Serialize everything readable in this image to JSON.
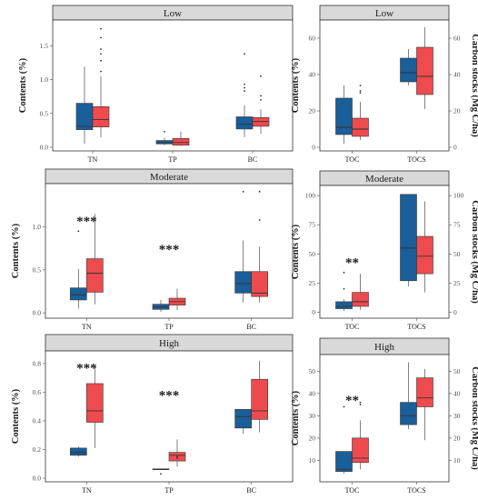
{
  "colors": {
    "A": "#1a5e9a",
    "B": "#ee4b4f",
    "strip": "#d9d9d9"
  },
  "chart_data": [
    {
      "type": "box",
      "strip": "Low",
      "ylabel": "Contents (%)",
      "categories": [
        "TN",
        "TP",
        "BC"
      ],
      "ylim": [
        0,
        1.8
      ],
      "yticks": [
        "0.0",
        "0.5",
        "1.0",
        "1.5"
      ],
      "ytick_values": [
        0,
        0.5,
        1.0,
        1.5
      ],
      "series": [
        {
          "color_key": "A",
          "boxes": [
            {
              "min": 0.05,
              "q1": 0.26,
              "median": 0.31,
              "q3": 0.65,
              "max": 1.19,
              "outliers": []
            },
            {
              "min": 0.03,
              "q1": 0.05,
              "median": 0.07,
              "q3": 0.1,
              "max": 0.14,
              "outliers": [
                0.23
              ]
            },
            {
              "min": 0.15,
              "q1": 0.27,
              "median": 0.34,
              "q3": 0.45,
              "max": 0.62,
              "outliers": [
                0.83,
                0.88,
                0.93,
                1.38
              ]
            }
          ]
        },
        {
          "color_key": "B",
          "boxes": [
            {
              "min": 0.15,
              "q1": 0.3,
              "median": 0.41,
              "q3": 0.6,
              "max": 1.05,
              "outliers": [
                1.12,
                1.28,
                1.38,
                1.45,
                1.62,
                1.75
              ]
            },
            {
              "min": 0.02,
              "q1": 0.03,
              "median": 0.07,
              "q3": 0.13,
              "max": 0.23,
              "outliers": []
            },
            {
              "min": 0.2,
              "q1": 0.31,
              "median": 0.38,
              "q3": 0.44,
              "max": 0.56,
              "outliers": [
                0.7,
                0.76,
                1.05
              ]
            }
          ]
        }
      ],
      "annotations": []
    },
    {
      "type": "box",
      "strip": "Low",
      "ylabel": "Contents (%)",
      "ylabel_right": "Carbon stocks (Mg C/ha)",
      "categories": [
        "TOC",
        "TOCS"
      ],
      "ylim": [
        0,
        67
      ],
      "yticks": [
        "0",
        "20",
        "40",
        "60"
      ],
      "ytick_values": [
        0,
        20,
        40,
        60
      ],
      "ylim_right": [
        0,
        67
      ],
      "yticks_right": [
        "0",
        "20",
        "40",
        "60"
      ],
      "ytick_values_right": [
        0,
        20,
        40,
        60
      ],
      "series": [
        {
          "color_key": "A",
          "boxes": [
            {
              "min": 2,
              "q1": 7,
              "median": 11,
              "q3": 27,
              "max": 34,
              "outliers": []
            },
            {
              "min": 34,
              "q1": 36,
              "median": 41,
              "q3": 49,
              "max": 54,
              "outliers": []
            }
          ]
        },
        {
          "color_key": "B",
          "boxes": [
            {
              "min": 4,
              "q1": 6,
              "median": 10,
              "q3": 16,
              "max": 25,
              "outliers": [
                30,
                31,
                34
              ]
            },
            {
              "min": 21,
              "q1": 29,
              "median": 39,
              "q3": 55,
              "max": 66,
              "outliers": []
            }
          ]
        }
      ],
      "annotations": []
    },
    {
      "type": "box",
      "strip": "Moderate",
      "ylabel": "Contents (%)",
      "categories": [
        "TN",
        "TP",
        "BC"
      ],
      "ylim": [
        -0.02,
        1.44
      ],
      "yticks": [
        "0.0",
        "0.5",
        "1.0"
      ],
      "ytick_values": [
        0,
        0.5,
        1.0
      ],
      "series": [
        {
          "color_key": "A",
          "boxes": [
            {
              "min": 0.05,
              "q1": 0.15,
              "median": 0.21,
              "q3": 0.29,
              "max": 0.51,
              "outliers": [
                0.95
              ]
            },
            {
              "min": 0.01,
              "q1": 0.04,
              "median": 0.07,
              "q3": 0.1,
              "max": 0.15,
              "outliers": []
            },
            {
              "min": 0.12,
              "q1": 0.23,
              "median": 0.34,
              "q3": 0.48,
              "max": 0.84,
              "outliers": [
                1.41
              ]
            }
          ]
        },
        {
          "color_key": "B",
          "boxes": [
            {
              "min": 0.1,
              "q1": 0.24,
              "median": 0.46,
              "q3": 0.63,
              "max": 1.15,
              "outliers": []
            },
            {
              "min": 0.03,
              "q1": 0.09,
              "median": 0.13,
              "q3": 0.17,
              "max": 0.28,
              "outliers": []
            },
            {
              "min": 0.12,
              "q1": 0.19,
              "median": 0.23,
              "q3": 0.48,
              "max": 0.77,
              "outliers": [
                1.08,
                1.41
              ]
            }
          ]
        }
      ],
      "annotations": [
        {
          "text": "***",
          "category_index": 0,
          "y": 1.07
        },
        {
          "text": "***",
          "category_index": 1,
          "y": 0.74
        }
      ]
    },
    {
      "type": "box",
      "strip": "Moderate",
      "ylabel": "Contents (%)",
      "ylabel_right": "Carbon stocks (Mg C/ha)",
      "categories": [
        "TOC",
        "TOCS"
      ],
      "ylim": [
        -2,
        104
      ],
      "yticks": [
        "0",
        "25",
        "50",
        "75",
        "100"
      ],
      "ytick_values": [
        0,
        25,
        50,
        75,
        100
      ],
      "ylim_right": [
        -2,
        104
      ],
      "yticks_right": [
        "0",
        "25",
        "50",
        "75",
        "100"
      ],
      "ytick_values_right": [
        0,
        25,
        50,
        75,
        100
      ],
      "series": [
        {
          "color_key": "A",
          "boxes": [
            {
              "min": 1,
              "q1": 3,
              "median": 5,
              "q3": 9,
              "max": 11,
              "outliers": [
                20,
                34
              ]
            },
            {
              "min": 22,
              "q1": 27,
              "median": 55,
              "q3": 101,
              "max": 101,
              "outliers": []
            }
          ]
        },
        {
          "color_key": "B",
          "boxes": [
            {
              "min": 2,
              "q1": 5,
              "median": 9,
              "q3": 17,
              "max": 33,
              "outliers": []
            },
            {
              "min": 17,
              "q1": 33,
              "median": 48,
              "q3": 65,
              "max": 95,
              "outliers": []
            }
          ]
        }
      ],
      "annotations": [
        {
          "text": "**",
          "category_index": 0,
          "y": 43
        }
      ]
    },
    {
      "type": "box",
      "strip": "High",
      "ylabel": "Contents (%)",
      "categories": [
        "TN",
        "TP",
        "BC"
      ],
      "ylim": [
        0,
        0.85
      ],
      "yticks": [
        "0.0",
        "0.2",
        "0.4",
        "0.6",
        "0.8"
      ],
      "ytick_values": [
        0,
        0.2,
        0.4,
        0.6,
        0.8
      ],
      "series": [
        {
          "color_key": "A",
          "boxes": [
            {
              "min": 0.15,
              "q1": 0.16,
              "median": 0.18,
              "q3": 0.21,
              "max": 0.22,
              "outliers": []
            },
            {
              "min": 0.06,
              "q1": 0.06,
              "median": 0.06,
              "q3": 0.065,
              "max": 0.065,
              "outliers": [
                0.03
              ]
            },
            {
              "min": 0.31,
              "q1": 0.35,
              "median": 0.43,
              "q3": 0.48,
              "max": 0.48,
              "outliers": []
            }
          ]
        },
        {
          "color_key": "B",
          "boxes": [
            {
              "min": 0.21,
              "q1": 0.39,
              "median": 0.47,
              "q3": 0.66,
              "max": 0.78,
              "outliers": []
            },
            {
              "min": 0.08,
              "q1": 0.12,
              "median": 0.16,
              "q3": 0.18,
              "max": 0.27,
              "outliers": [
                0.14,
                0.15
              ]
            },
            {
              "min": 0.32,
              "q1": 0.41,
              "median": 0.47,
              "q3": 0.69,
              "max": 0.82,
              "outliers": []
            }
          ]
        }
      ],
      "annotations": [
        {
          "text": "***",
          "category_index": 0,
          "y": 0.77
        },
        {
          "text": "***",
          "category_index": 1,
          "y": 0.58
        }
      ]
    },
    {
      "type": "box",
      "strip": "High",
      "ylabel": "Contents (%)",
      "ylabel_right": "Carbon stocks (Mg C/ha)",
      "categories": [
        "TOC",
        "TOCS"
      ],
      "ylim": [
        2,
        55
      ],
      "yticks": [
        "10",
        "20",
        "30",
        "40",
        "50"
      ],
      "ytick_values": [
        10,
        20,
        30,
        40,
        50
      ],
      "ylim_right": [
        2,
        55
      ],
      "yticks_right": [
        "10",
        "20",
        "30",
        "40",
        "50"
      ],
      "ytick_values_right": [
        10,
        20,
        30,
        40,
        50
      ],
      "series": [
        {
          "color_key": "A",
          "boxes": [
            {
              "min": 4,
              "q1": 5,
              "median": 6,
              "q3": 14,
              "max": 14,
              "outliers": [
                34
              ]
            },
            {
              "min": 24,
              "q1": 26,
              "median": 30,
              "q3": 36,
              "max": 54,
              "outliers": []
            }
          ]
        },
        {
          "color_key": "B",
          "boxes": [
            {
              "min": 6,
              "q1": 9,
              "median": 11,
              "q3": 20,
              "max": 28,
              "outliers": [
                35,
                36
              ]
            },
            {
              "min": 19,
              "q1": 34,
              "median": 38,
              "q3": 47,
              "max": 51,
              "outliers": []
            }
          ]
        }
      ],
      "annotations": [
        {
          "text": "**",
          "category_index": 0,
          "y": 37
        }
      ]
    }
  ]
}
